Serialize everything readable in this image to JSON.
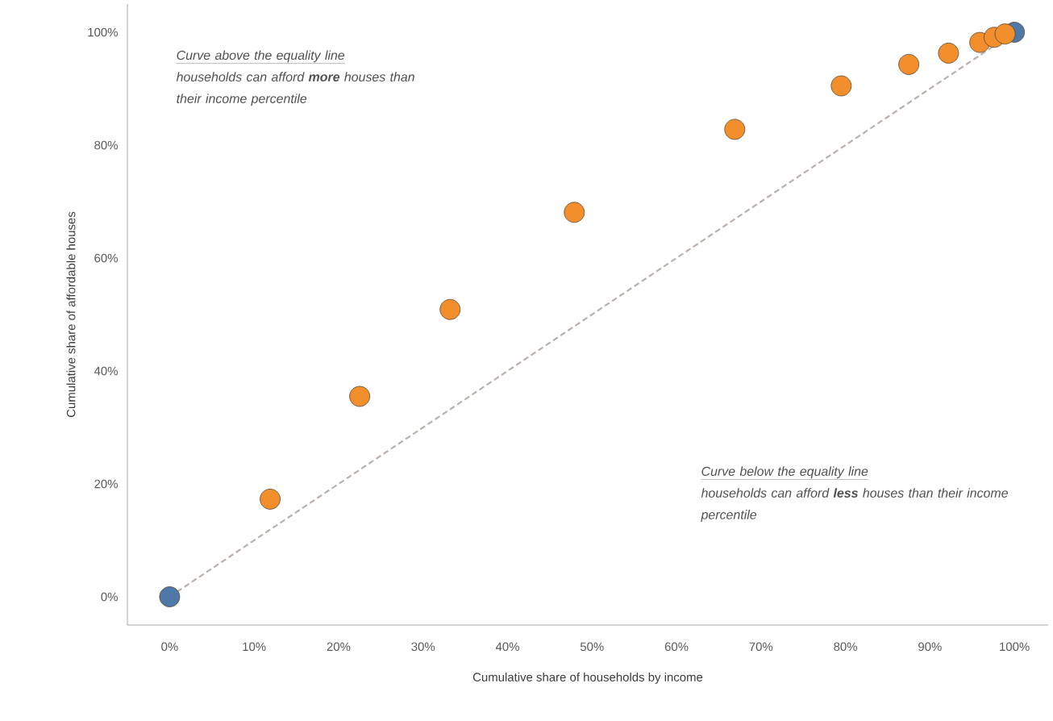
{
  "chart_data": {
    "type": "scatter",
    "xlabel": "Cumulative share of households by income",
    "ylabel": "Cumulative share of affordable houses",
    "annotations": [
      "Curve above the equality line",
      "households can afford **more** houses than their income percentile",
      "Curve below the equality line",
      "households can afford **less** houses than their income percentile"
    ],
    "x": [
      100,
      0,
      11.9,
      22.5,
      33.2,
      47.9,
      66.9,
      79.5,
      87.5,
      92.2,
      95.9,
      97.6,
      98.9
    ],
    "series": [
      {
        "marker": "circle",
        "values": [
          100,
          0,
          17.3,
          35.5,
          50.9,
          68.1,
          82.8,
          90.5,
          94.3,
          96.3,
          98.2,
          99.1,
          99.7
        ],
        "colors": [
          "#4e79a7",
          "#4e79a7",
          "#f28e2b",
          "#f28e2b",
          "#f28e2b",
          "#f28e2b",
          "#f28e2b",
          "#f28e2b",
          "#f28e2b",
          "#f28e2b",
          "#f28e2b",
          "#f28e2b",
          "#f28e2b"
        ]
      },
      {
        "type": "line",
        "x": [
          0,
          100
        ],
        "values": [
          0,
          100
        ],
        "color": "#bab0ac",
        "line_style": "dashed",
        "marker": "none"
      }
    ],
    "grid": false,
    "xlim": [
      -5,
      104
    ],
    "ylim": [
      -5,
      105
    ],
    "xticks": [
      {
        "value": 0,
        "label": "0%"
      },
      {
        "value": 10,
        "label": "10%"
      },
      {
        "value": 20,
        "label": "20%"
      },
      {
        "value": 30,
        "label": "30%"
      },
      {
        "value": 40,
        "label": "40%"
      },
      {
        "value": 50,
        "label": "50%"
      },
      {
        "value": 60,
        "label": "60%"
      },
      {
        "value": 70,
        "label": "70%"
      },
      {
        "value": 80,
        "label": "80%"
      },
      {
        "value": 90,
        "label": "90%"
      },
      {
        "value": 100,
        "label": "100%"
      }
    ],
    "yticks": [
      {
        "value": 0,
        "label": "0%"
      },
      {
        "value": 20,
        "label": "20%"
      },
      {
        "value": 40,
        "label": "40%"
      },
      {
        "value": 60,
        "label": "60%"
      },
      {
        "value": 80,
        "label": "80%"
      },
      {
        "value": 100,
        "label": "100%"
      }
    ]
  }
}
